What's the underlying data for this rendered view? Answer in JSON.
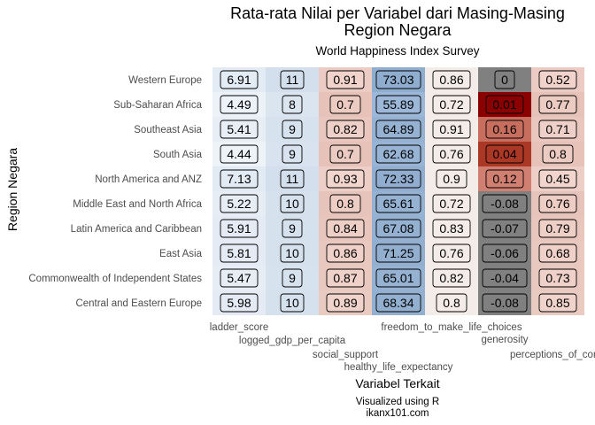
{
  "chart_data": {
    "type": "heatmap",
    "title_line1": "Rata-rata Nilai per Variabel dari Masing-Masing",
    "title_line2": "Region Negara",
    "subtitle": "World Happiness Index Survey",
    "xlabel": "Variabel Terkait",
    "ylabel": "Region Negara",
    "caption_line1": "Visualized using R",
    "caption_line2": "ikanx101.com",
    "x_categories": [
      "ladder_score",
      "logged_gdp_per_capita",
      "social_support",
      "healthy_life_expectancy",
      "freedom_to_make_life_choices",
      "generosity",
      "perceptions_of_corru"
    ],
    "y_categories": [
      "Western Europe",
      "Sub-Saharan Africa",
      "Southeast Asia",
      "South Asia",
      "North America and ANZ",
      "Middle East and North Africa",
      "Latin America and Caribbean",
      "East Asia",
      "Commonwealth of Independent States",
      "Central and Eastern Europe"
    ],
    "values": [
      [
        6.91,
        11,
        0.91,
        73.03,
        0.86,
        0,
        0.52
      ],
      [
        4.49,
        8,
        0.7,
        55.89,
        0.72,
        0.01,
        0.77
      ],
      [
        5.41,
        9,
        0.82,
        64.89,
        0.91,
        0.16,
        0.71
      ],
      [
        4.44,
        9,
        0.7,
        62.68,
        0.76,
        0.04,
        0.8
      ],
      [
        7.13,
        11,
        0.93,
        72.33,
        0.9,
        0.12,
        0.45
      ],
      [
        5.22,
        10,
        0.8,
        65.61,
        0.72,
        -0.08,
        0.76
      ],
      [
        5.91,
        9,
        0.84,
        67.08,
        0.83,
        -0.07,
        0.79
      ],
      [
        5.81,
        10,
        0.86,
        71.25,
        0.76,
        -0.06,
        0.68
      ],
      [
        5.47,
        9,
        0.87,
        65.01,
        0.82,
        -0.04,
        0.73
      ],
      [
        5.98,
        10,
        0.89,
        68.34,
        0.8,
        -0.08,
        0.85
      ]
    ],
    "cell_colors": [
      [
        "#e3ebf4",
        "#d3dfec",
        "#ebcbc3",
        "#8fadcf",
        "#f3ece9",
        "#808080",
        "#ebcbc3"
      ],
      [
        "#edf2f8",
        "#dbe5f0",
        "#e6c2b9",
        "#9cb7d7",
        "#f3ece9",
        "#8b0000",
        "#e6c2b9"
      ],
      [
        "#e7eef6",
        "#d6e2ee",
        "#e9c7be",
        "#96b2d3",
        "#f3ece9",
        "#c86e5f",
        "#e9c7be"
      ],
      [
        "#eef3f8",
        "#d8e3ef",
        "#e6c2b9",
        "#98b4d4",
        "#f3ece9",
        "#ab3825",
        "#e6c2b9"
      ],
      [
        "#e2eaf3",
        "#d3dfec",
        "#edcfc7",
        "#91aed0",
        "#f3ece9",
        "#d07f70",
        "#edcfc7"
      ],
      [
        "#e6edf5",
        "#d5e1ed",
        "#e7c4bb",
        "#95b2d2",
        "#f3ece9",
        "#808080",
        "#e7c4bb"
      ],
      [
        "#e4ebf4",
        "#d6e1ee",
        "#e8c6bd",
        "#94b1d2",
        "#f3ece9",
        "#808080",
        "#e8c6bd"
      ],
      [
        "#e4ebf4",
        "#d5e1ed",
        "#e9c8bf",
        "#92afd0",
        "#f3ece9",
        "#808080",
        "#e9c8bf"
      ],
      [
        "#e6edf5",
        "#d6e2ee",
        "#e9c8bf",
        "#95b2d2",
        "#f3ece9",
        "#808080",
        "#e9c8bf"
      ],
      [
        "#e4ebf4",
        "#d5e1ed",
        "#eacbc2",
        "#93b0d1",
        "#f3ece9",
        "#808080",
        "#eacbc2"
      ]
    ],
    "label_fills": [
      [
        "#e3ebf4",
        "#d3dfec",
        "#f1d3cb",
        "#8fadcf",
        "#f3ece9",
        "#808080",
        "#f1d3cb"
      ],
      [
        "#edf2f8",
        "#dbe5f0",
        "#eccbc2",
        "#9cb7d7",
        "#f3ece9",
        "#8b0000",
        "#eccbc2"
      ],
      [
        "#e7eef6",
        "#d6e2ee",
        "#efd0c8",
        "#96b2d3",
        "#f3ece9",
        "#c86e5f",
        "#efd0c8"
      ],
      [
        "#eef3f8",
        "#d8e3ef",
        "#eccbc2",
        "#98b4d4",
        "#f3ece9",
        "#ab3825",
        "#eccbc2"
      ],
      [
        "#e2eaf3",
        "#d3dfec",
        "#f2d6ce",
        "#91aed0",
        "#f3ece9",
        "#d07f70",
        "#f2d6ce"
      ],
      [
        "#e6edf5",
        "#d5e1ed",
        "#edcdc4",
        "#95b2d2",
        "#f3ece9",
        "#808080",
        "#edcdc4"
      ],
      [
        "#e4ebf4",
        "#d6e1ee",
        "#eecfc6",
        "#94b1d2",
        "#f3ece9",
        "#808080",
        "#eecfc6"
      ],
      [
        "#e4ebf4",
        "#d5e1ed",
        "#efd1c9",
        "#92afd0",
        "#f3ece9",
        "#808080",
        "#efd1c9"
      ],
      [
        "#e6edf5",
        "#d6e2ee",
        "#efd1c9",
        "#95b2d2",
        "#f3ece9",
        "#808080",
        "#efd1c9"
      ],
      [
        "#e4ebf4",
        "#d5e1ed",
        "#f0d3cb",
        "#93b0d1",
        "#f3ece9",
        "#808080",
        "#f0d3cb"
      ]
    ]
  }
}
